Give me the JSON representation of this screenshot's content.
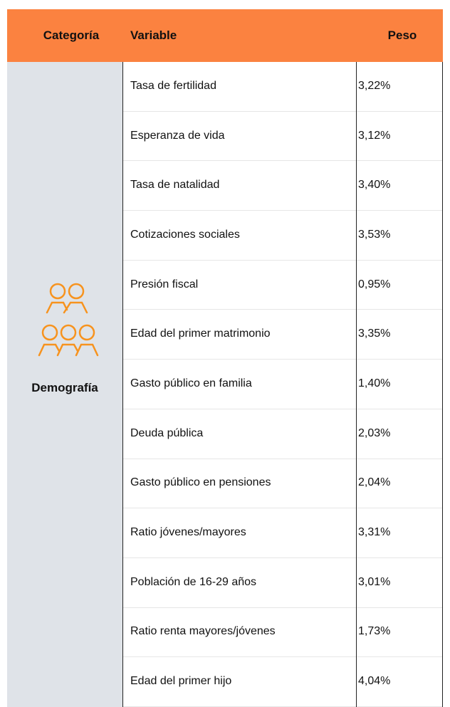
{
  "header": {
    "categoria": "Categoría",
    "variable": "Variable",
    "peso": "Peso"
  },
  "category": "Demografía",
  "rows": [
    [
      "Tasa de fertilidad",
      "3,22%"
    ],
    [
      "Esperanza de vida",
      "3,12%"
    ],
    [
      "Tasa de natalidad",
      "3,40%"
    ],
    [
      "Cotizaciones sociales",
      "3,53%"
    ],
    [
      "Presión fiscal",
      "0,95%"
    ],
    [
      "Edad del primer matrimonio",
      "3,35%"
    ],
    [
      "Gasto público en familia",
      "1,40%"
    ],
    [
      "Deuda pública",
      "2,03%"
    ],
    [
      "Gasto público en pensiones",
      "2,04%"
    ],
    [
      "Ratio jóvenes/mayores",
      "3,31%"
    ],
    [
      "Población de 16-29 años",
      "3,01%"
    ],
    [
      "Ratio renta mayores/jóvenes",
      "1,73%"
    ],
    [
      "Edad del primer hijo",
      "4,04%"
    ]
  ]
}
